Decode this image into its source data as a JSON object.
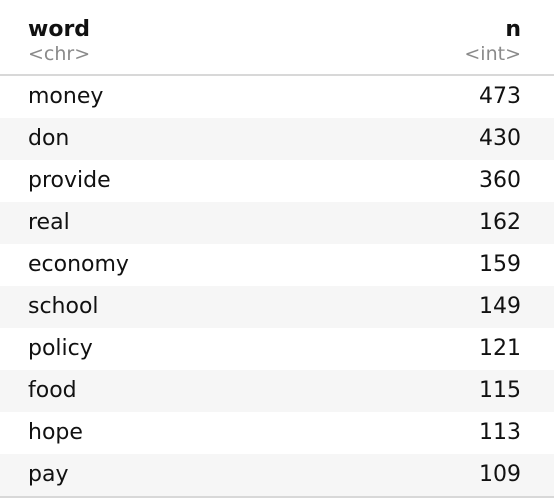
{
  "table": {
    "columns": [
      {
        "name": "word",
        "type": "<chr>",
        "align": "left"
      },
      {
        "name": "n",
        "type": "<int>",
        "align": "right"
      }
    ],
    "rows": [
      {
        "word": "money",
        "n": "473"
      },
      {
        "word": "don",
        "n": "430"
      },
      {
        "word": "provide",
        "n": "360"
      },
      {
        "word": "real",
        "n": "162"
      },
      {
        "word": "economy",
        "n": "159"
      },
      {
        "word": "school",
        "n": "149"
      },
      {
        "word": "policy",
        "n": "121"
      },
      {
        "word": "food",
        "n": "115"
      },
      {
        "word": "hope",
        "n": "113"
      },
      {
        "word": "pay",
        "n": "109"
      }
    ]
  },
  "colors": {
    "header_text": "#111111",
    "type_text": "#8a8a8a",
    "striped_row": "#f6f6f6",
    "border": "#d8d8d8"
  }
}
